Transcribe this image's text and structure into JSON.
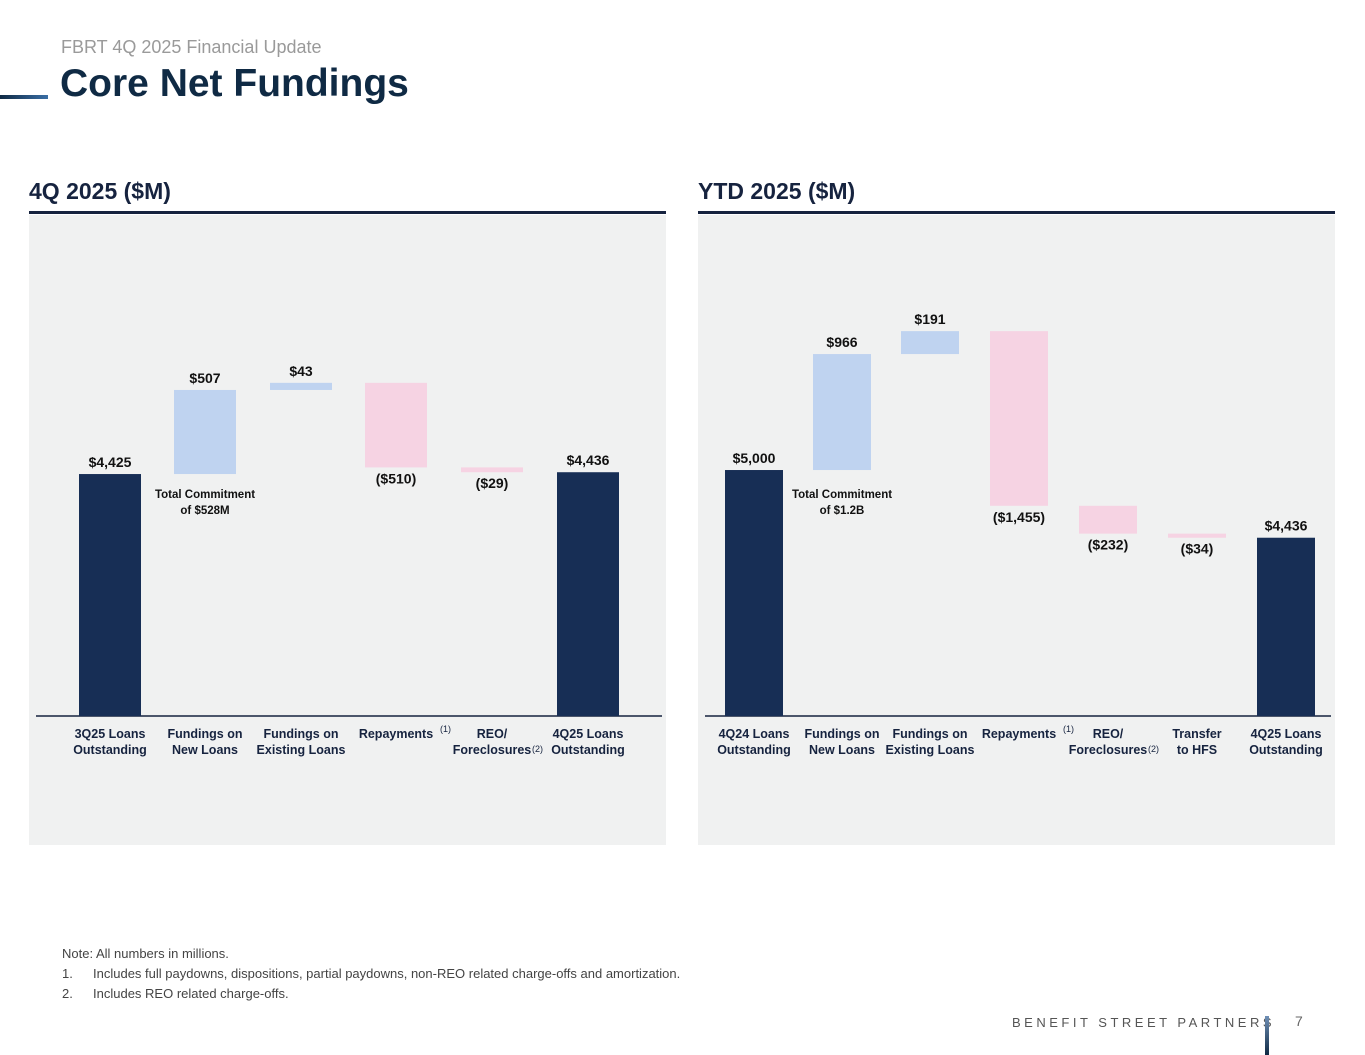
{
  "header": {
    "subtitle": "FBRT 4Q 2025 Financial Update",
    "title": "Core Net Fundings"
  },
  "colors": {
    "total": "#172e55",
    "increase": "#bfd3f0",
    "decrease": "#f6d3e3",
    "axis": "#16233f",
    "panel": "#f0f1f1"
  },
  "chart_data": [
    {
      "type": "waterfall",
      "title": "4Q 2025 ($M)",
      "categories": [
        "3Q25 Loans\nOutstanding",
        "Fundings on\nNew Loans",
        "Fundings on\nExisting Loans",
        "Repayments",
        "REO/\nForeclosures",
        "4Q25 Loans\nOutstanding"
      ],
      "footnote_marks": [
        "",
        "",
        "",
        "(1)",
        "(2)",
        ""
      ],
      "values": [
        4425,
        507,
        43,
        -510,
        -29,
        4436
      ],
      "kinds": [
        "total",
        "increase",
        "increase",
        "decrease",
        "decrease",
        "total"
      ],
      "labels": [
        "$4,425",
        "$507",
        "$43",
        "($510)",
        "($29)",
        "$4,436"
      ],
      "annotation": "Total Commitment\nof $528M"
    },
    {
      "type": "waterfall",
      "title": "YTD 2025 ($M)",
      "categories": [
        "4Q24 Loans\nOutstanding",
        "Fundings on\nNew Loans",
        "Fundings on\nExisting Loans",
        "Repayments",
        "REO/\nForeclosures",
        "Transfer\nto HFS",
        "4Q25 Loans\nOutstanding"
      ],
      "footnote_marks": [
        "",
        "",
        "",
        "(1)",
        "(2)",
        "",
        ""
      ],
      "values": [
        5000,
        966,
        191,
        -1455,
        -232,
        -34,
        4436
      ],
      "kinds": [
        "total",
        "increase",
        "increase",
        "decrease",
        "decrease",
        "decrease",
        "total"
      ],
      "labels": [
        "$5,000",
        "$966",
        "$191",
        "($1,455)",
        "($232)",
        "($34)",
        "$4,436"
      ],
      "annotation": "Total Commitment\nof $1.2B"
    }
  ],
  "notes": {
    "note": "Note: All numbers in millions.",
    "items": [
      {
        "num": "1.",
        "text": "Includes full paydowns, dispositions, partial paydowns, non-REO related charge-offs and amortization."
      },
      {
        "num": "2.",
        "text": "Includes REO related charge-offs."
      }
    ]
  },
  "footer": {
    "brand": "BENEFIT STREET PARTNERS",
    "page": "7"
  }
}
